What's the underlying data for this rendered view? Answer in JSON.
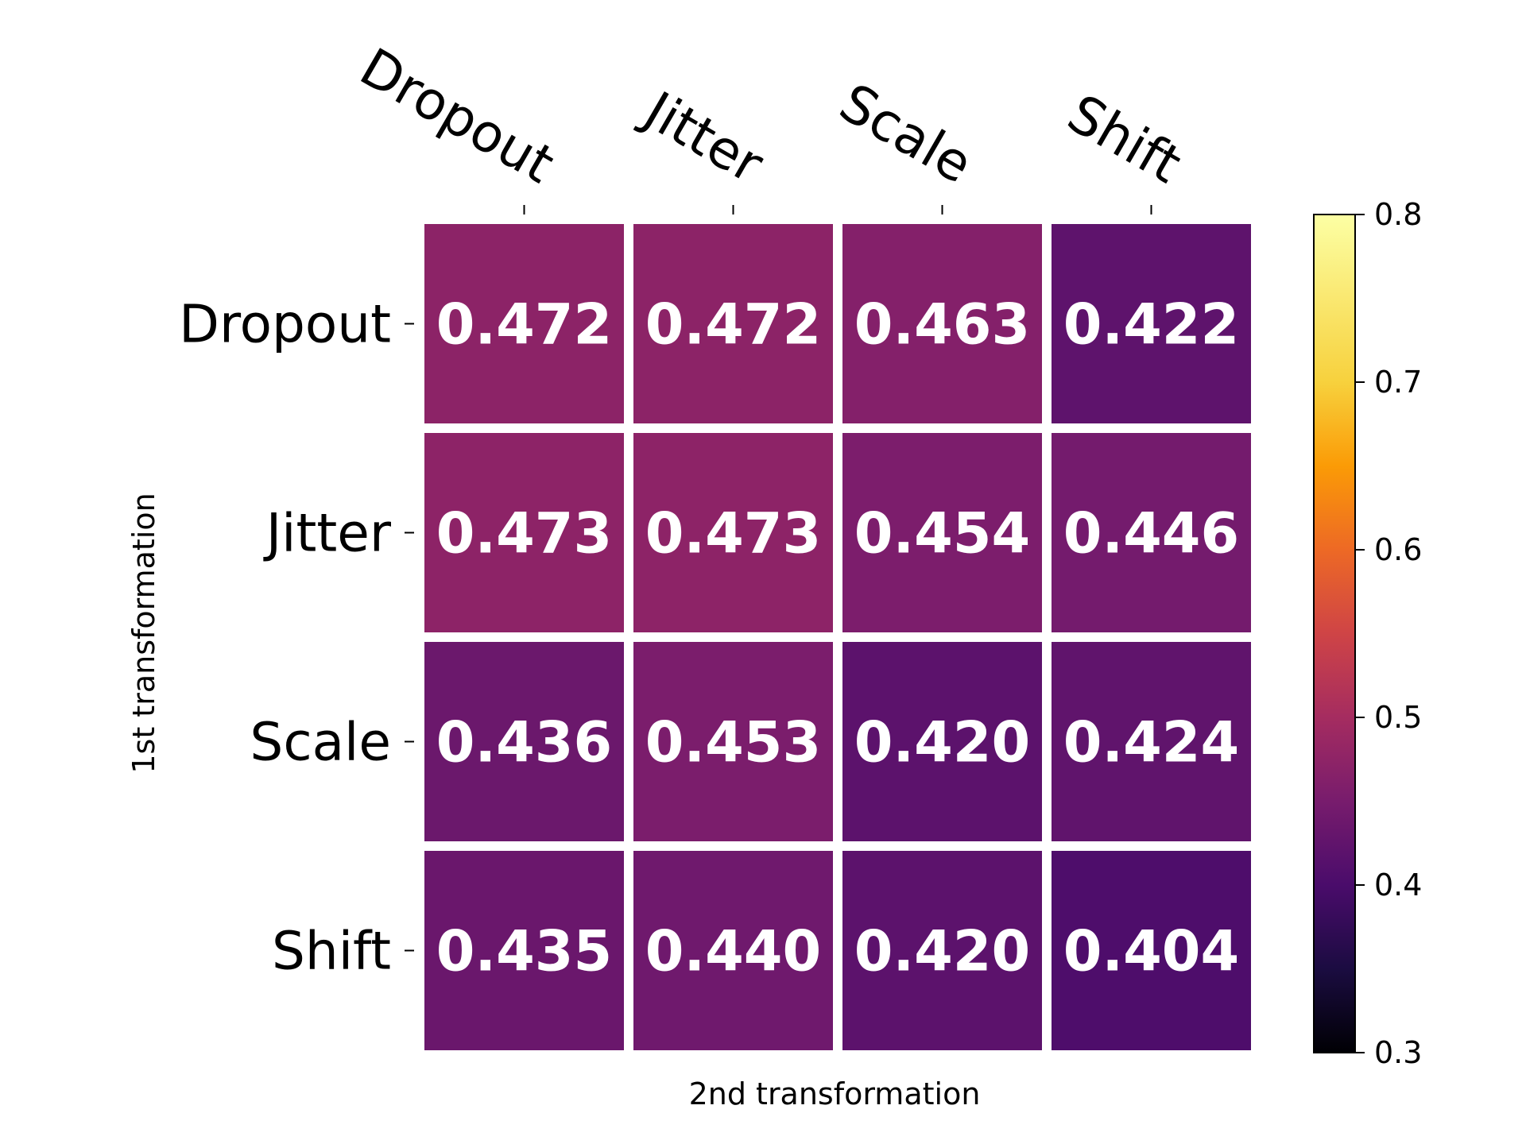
{
  "chart_data": {
    "type": "heatmap",
    "title": "",
    "xlabel": "2nd transformation",
    "ylabel": "1st transformation",
    "x_categories": [
      "Dropout",
      "Jitter",
      "Scale",
      "Shift"
    ],
    "y_categories": [
      "Dropout",
      "Jitter",
      "Scale",
      "Shift"
    ],
    "values": [
      [
        0.472,
        0.472,
        0.463,
        0.422
      ],
      [
        0.473,
        0.473,
        0.454,
        0.446
      ],
      [
        0.436,
        0.453,
        0.42,
        0.424
      ],
      [
        0.435,
        0.44,
        0.42,
        0.404
      ]
    ],
    "value_labels": [
      [
        "0.472",
        "0.472",
        "0.463",
        "0.422"
      ],
      [
        "0.473",
        "0.473",
        "0.454",
        "0.446"
      ],
      [
        "0.436",
        "0.453",
        "0.420",
        "0.424"
      ],
      [
        "0.435",
        "0.440",
        "0.420",
        "0.404"
      ]
    ],
    "colorbar": {
      "colormap": "inferno",
      "vmin": 0.3,
      "vmax": 0.8,
      "ticks": [
        0.3,
        0.4,
        0.5,
        0.6,
        0.7,
        0.8
      ],
      "tick_labels": [
        "0.3",
        "0.4",
        "0.5",
        "0.6",
        "0.7",
        "0.8"
      ]
    },
    "x_ticks_position": "top",
    "grid": false
  }
}
